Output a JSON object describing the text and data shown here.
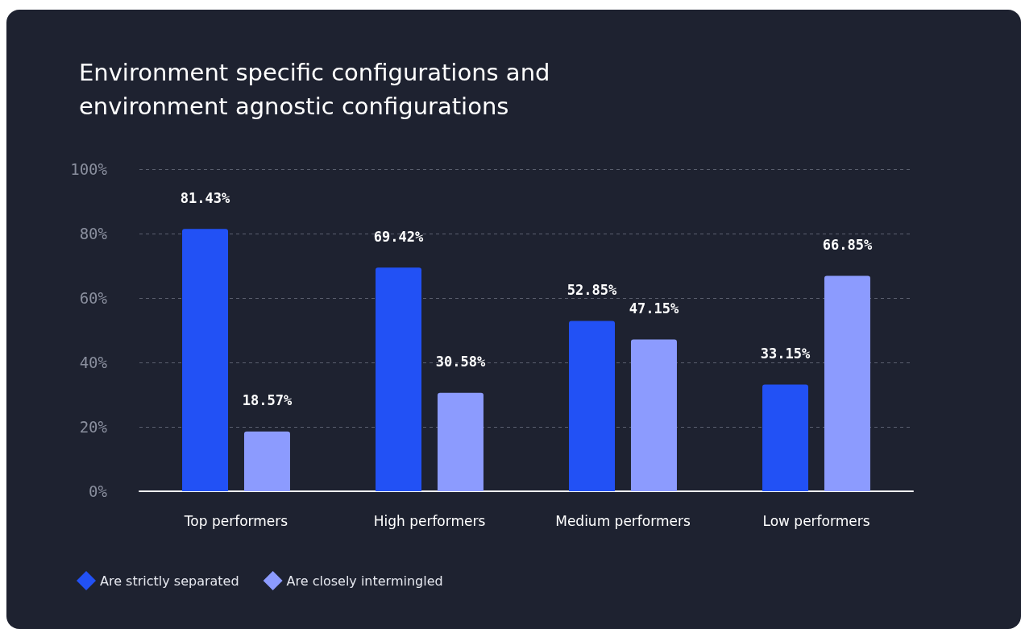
{
  "chart_data": {
    "type": "bar",
    "title": "Environment specific configurations and\nenvironment agnostic configurations",
    "categories": [
      "Top performers",
      "High performers",
      "Medium performers",
      "Low performers"
    ],
    "series": [
      {
        "name": "Are strictly separated",
        "color": "#2251f5",
        "values": [
          81.43,
          69.42,
          52.85,
          33.15
        ],
        "value_labels": [
          "81.43%",
          "69.42%",
          "52.85%",
          "33.15%"
        ]
      },
      {
        "name": "Are closely intermingled",
        "color": "#8c9bfe",
        "values": [
          18.57,
          30.58,
          47.15,
          66.85
        ],
        "value_labels": [
          "18.57%",
          "30.58%",
          "47.15%",
          "66.85%"
        ]
      }
    ],
    "ylim": [
      0,
      100
    ],
    "yticks": [
      {
        "value": 0,
        "label": "0%"
      },
      {
        "value": 20,
        "label": "20%"
      },
      {
        "value": 40,
        "label": "40%"
      },
      {
        "value": 60,
        "label": "60%"
      },
      {
        "value": 80,
        "label": "80%"
      },
      {
        "value": 100,
        "label": "100%"
      }
    ],
    "grid": "y",
    "legend": "bottom left"
  }
}
